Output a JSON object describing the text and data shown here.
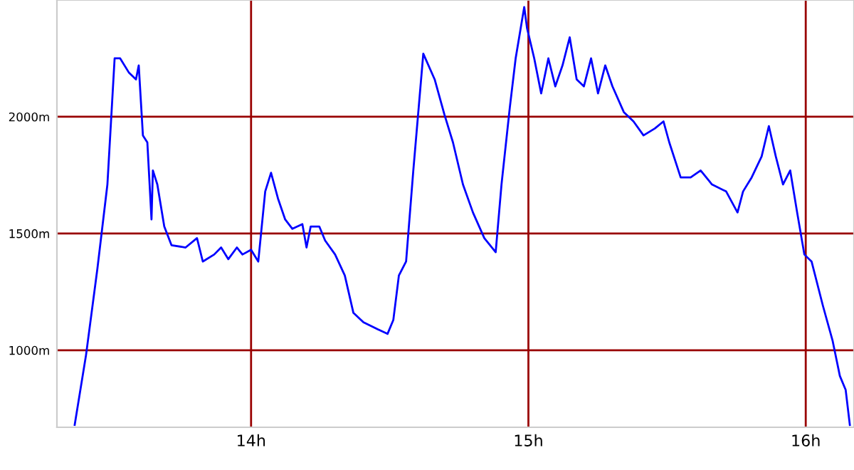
{
  "chart_data": {
    "type": "line",
    "color": "#0000ff",
    "x": [
      13.364,
      13.405,
      13.446,
      13.482,
      13.508,
      13.528,
      13.559,
      13.585,
      13.595,
      13.61,
      13.626,
      13.641,
      13.646,
      13.662,
      13.687,
      13.713,
      13.764,
      13.805,
      13.826,
      13.867,
      13.892,
      13.918,
      13.949,
      13.969,
      14.0,
      14.026,
      14.051,
      14.072,
      14.097,
      14.123,
      14.149,
      14.185,
      14.2,
      14.215,
      14.246,
      14.267,
      14.303,
      14.338,
      14.369,
      14.405,
      14.456,
      14.492,
      14.513,
      14.533,
      14.559,
      14.585,
      14.621,
      14.662,
      14.697,
      14.728,
      14.764,
      14.8,
      14.841,
      14.882,
      14.903,
      14.933,
      14.954,
      14.985,
      14.995,
      15.021,
      15.046,
      15.072,
      15.097,
      15.123,
      15.149,
      15.174,
      15.2,
      15.226,
      15.251,
      15.277,
      15.303,
      15.344,
      15.379,
      15.415,
      15.456,
      15.487,
      15.508,
      15.549,
      15.585,
      15.621,
      15.662,
      15.713,
      15.754,
      15.774,
      15.805,
      15.841,
      15.867,
      15.892,
      15.918,
      15.944,
      15.969,
      15.995,
      16.021,
      16.062,
      16.097,
      16.123,
      16.144,
      16.159
    ],
    "values": [
      680,
      980,
      1350,
      1710,
      2250,
      2250,
      2190,
      2160,
      2220,
      1920,
      1890,
      1560,
      1770,
      1710,
      1530,
      1450,
      1440,
      1480,
      1380,
      1410,
      1440,
      1390,
      1440,
      1410,
      1430,
      1380,
      1680,
      1760,
      1650,
      1560,
      1520,
      1540,
      1440,
      1530,
      1530,
      1470,
      1410,
      1320,
      1160,
      1120,
      1090,
      1070,
      1130,
      1320,
      1380,
      1770,
      2270,
      2160,
      2010,
      1890,
      1710,
      1590,
      1480,
      1420,
      1710,
      2040,
      2250,
      2470,
      2380,
      2250,
      2100,
      2250,
      2130,
      2220,
      2340,
      2160,
      2130,
      2250,
      2100,
      2220,
      2130,
      2020,
      1980,
      1920,
      1950,
      1980,
      1890,
      1740,
      1740,
      1770,
      1710,
      1680,
      1590,
      1680,
      1740,
      1830,
      1960,
      1830,
      1710,
      1770,
      1590,
      1410,
      1380,
      1190,
      1040,
      890,
      830,
      680
    ],
    "xlim": [
      13.3,
      16.174
    ],
    "ylim": [
      670,
      2500
    ],
    "xticks": [
      {
        "value": 14,
        "label": "14h"
      },
      {
        "value": 15,
        "label": "15h"
      },
      {
        "value": 16,
        "label": "16h"
      }
    ],
    "yticks": [
      {
        "value": 1000,
        "label": "1000m"
      },
      {
        "value": 1500,
        "label": "1500m"
      },
      {
        "value": 2000,
        "label": "2000m"
      }
    ],
    "grid": true,
    "marker": "none",
    "line_style": "solid"
  }
}
